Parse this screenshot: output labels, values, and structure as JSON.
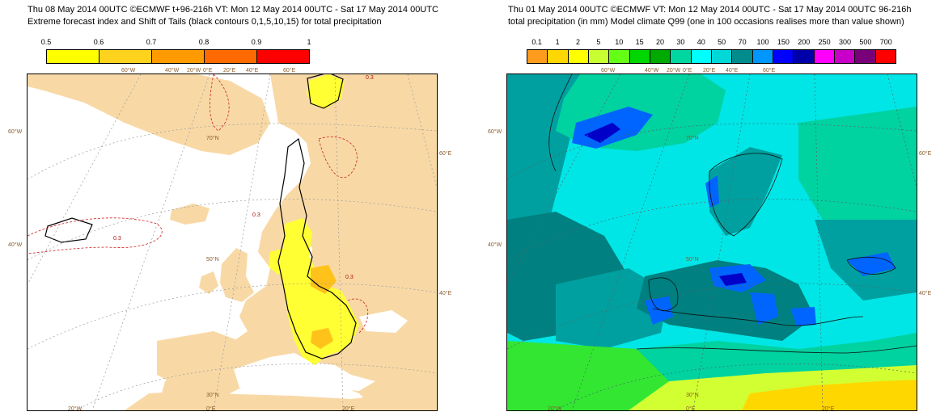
{
  "left": {
    "title_line1": "Thu 08 May 2014 00UTC ©ECMWF t+96-216h  VT: Mon 12 May 2014 00UTC - Sat 17 May 2014 00UTC",
    "title_line2": "Extreme forecast index and Shift of Tails (black contours 0,1,5,10,15) for total precipitation",
    "colorbar": {
      "labels": [
        "0.5",
        "0.6",
        "0.7",
        "0.8",
        "0.9",
        "1"
      ],
      "colors": [
        "#ffff00",
        "#ffd21e",
        "#ff9b00",
        "#ff6a00",
        "#ff0000"
      ]
    },
    "map": {
      "ocean_color": "#ffffff",
      "land_color": "#f8d9a6",
      "efi_color": "#ffff33",
      "efi_strong_color": "#ffc21a",
      "sot_contour_color": "#000000",
      "efi_contour_color": "#cc2222",
      "efi_contour_label": "0.3"
    },
    "lon_ticks_top": [
      "60°W",
      "40°W",
      "20°W",
      "0°E",
      "20°E",
      "40°E",
      "60°E"
    ],
    "lon_ticks_bottom": [
      "20°W",
      "0°E",
      "20°E"
    ],
    "lat_ticks_left": [
      "60°W",
      "40°W"
    ],
    "lat_ticks_right": [
      "60°E",
      "40°E"
    ],
    "inner_labels": [
      "70°N",
      "50°N",
      "30°N"
    ]
  },
  "right": {
    "title_line1": "Thu 01 May 2014 00UTC ©ECMWF VT: Mon 12 May 2014 00UTC - Sat 17 May 2014 00UTC   96-216h",
    "title_line2": "total precipitation (in mm)  Model climate Q99 (one in 100 occasions realises more than value shown)",
    "colorbar": {
      "labels": [
        "0.1",
        "1",
        "2",
        "5",
        "10",
        "15",
        "20",
        "30",
        "40",
        "50",
        "70",
        "100",
        "150",
        "200",
        "250",
        "300",
        "500",
        "700"
      ],
      "colors": [
        "#ff9c1e",
        "#ffd700",
        "#ffff00",
        "#c8ff32",
        "#64ff14",
        "#00d700",
        "#00aa00",
        "#00d7a0",
        "#00ffff",
        "#00d7d7",
        "#008c8c",
        "#0096ff",
        "#0000ff",
        "#0000aa",
        "#ff00ff",
        "#c800c8",
        "#780078",
        "#ff0000"
      ]
    },
    "map": {
      "background_color": "#00e6e6",
      "teal_color": "#00a0a0",
      "dark_teal_color": "#008080",
      "green_color": "#00d2a0",
      "bright_green_color": "#32e632",
      "yellow_color": "#d2ff32",
      "orange_color": "#ffd700",
      "blue_color": "#0064ff",
      "deep_blue_color": "#0000c8"
    },
    "lon_ticks_top": [
      "60°W",
      "40°W",
      "20°W",
      "0°E",
      "20°E",
      "40°E",
      "60°E"
    ],
    "lon_ticks_bottom": [
      "20°W",
      "0°E",
      "20°E"
    ],
    "lat_ticks_left": [
      "60°W",
      "40°W"
    ],
    "lat_ticks_right": [
      "60°E",
      "40°E"
    ],
    "inner_labels": [
      "70°N",
      "50°N",
      "30°N"
    ]
  }
}
